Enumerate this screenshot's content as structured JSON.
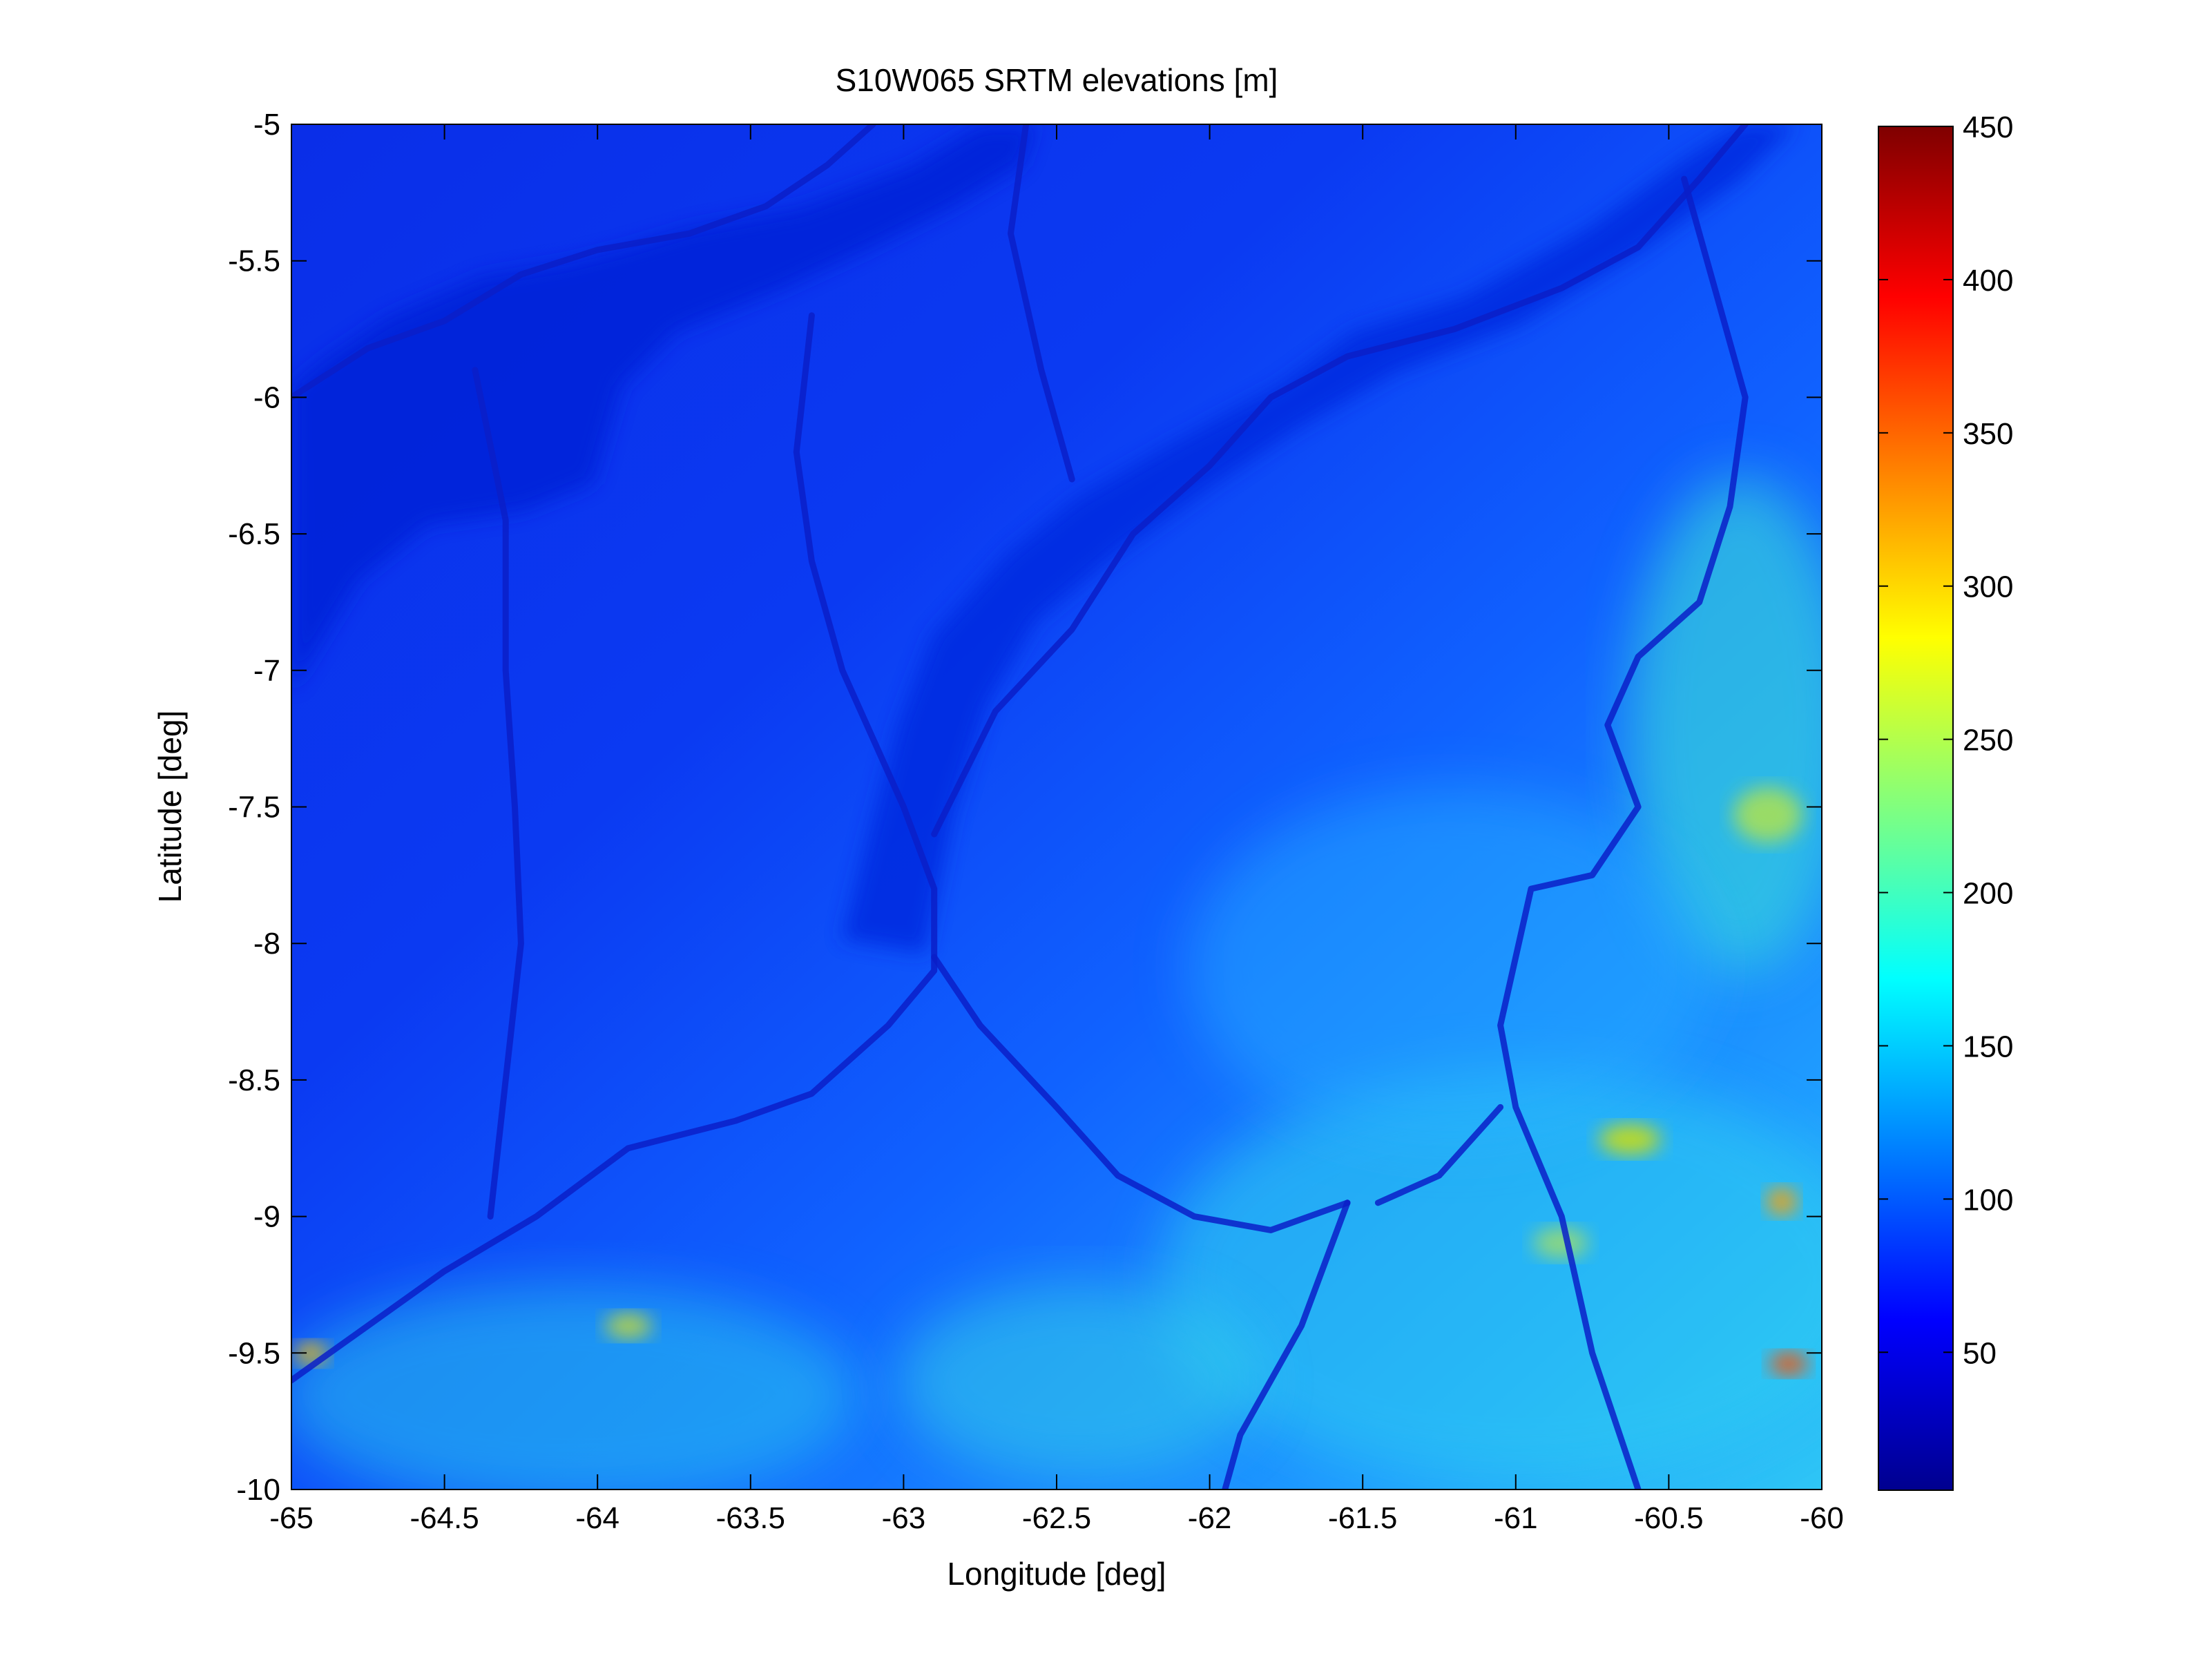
{
  "figure": {
    "title": "S10W065 SRTM elevations [m]",
    "colormap": "jet",
    "background": "#ffffff"
  },
  "map": {
    "xlabel": "Longitude [deg]",
    "ylabel": "Latitude [deg]",
    "xlim": [
      -65,
      -60
    ],
    "ylim": [
      -10,
      -5
    ],
    "xticks": [
      -65,
      -64.5,
      -64,
      -63.5,
      -63,
      -62.5,
      -62,
      -61.5,
      -61,
      -60.5,
      -60
    ],
    "yticks": [
      -5,
      -5.5,
      -6,
      -6.5,
      -7,
      -7.5,
      -8,
      -8.5,
      -9,
      -9.5,
      -10
    ],
    "rivers": [
      {
        "name": "",
        "points": [
          [
            -65,
            -6.0
          ],
          [
            -64.75,
            -5.82
          ],
          [
            -64.5,
            -5.72
          ],
          [
            -64.25,
            -5.55
          ],
          [
            -64.0,
            -5.46
          ],
          [
            -63.7,
            -5.4
          ],
          [
            -63.45,
            -5.3
          ],
          [
            -63.25,
            -5.15
          ],
          [
            -63.1,
            -5.0
          ]
        ]
      },
      {
        "name": "",
        "points": [
          [
            -64.4,
            -5.9
          ],
          [
            -64.3,
            -6.45
          ],
          [
            -64.3,
            -7.0
          ],
          [
            -64.27,
            -7.5
          ],
          [
            -64.25,
            -8.0
          ],
          [
            -64.3,
            -8.5
          ],
          [
            -64.35,
            -9.0
          ]
        ]
      },
      {
        "name": "",
        "points": [
          [
            -63.3,
            -5.7
          ],
          [
            -63.35,
            -6.2
          ],
          [
            -63.3,
            -6.6
          ],
          [
            -63.2,
            -7.0
          ],
          [
            -63.0,
            -7.5
          ],
          [
            -62.9,
            -7.8
          ],
          [
            -62.9,
            -8.1
          ],
          [
            -63.05,
            -8.3
          ],
          [
            -63.3,
            -8.55
          ],
          [
            -63.55,
            -8.65
          ],
          [
            -63.9,
            -8.75
          ],
          [
            -64.2,
            -9.0
          ],
          [
            -64.5,
            -9.2
          ],
          [
            -64.75,
            -9.4
          ],
          [
            -65,
            -9.6
          ]
        ]
      },
      {
        "name": "",
        "points": [
          [
            -62.9,
            -8.05
          ],
          [
            -62.75,
            -8.3
          ],
          [
            -62.5,
            -8.6
          ],
          [
            -62.3,
            -8.85
          ],
          [
            -62.05,
            -9.0
          ],
          [
            -61.8,
            -9.05
          ],
          [
            -61.55,
            -8.95
          ]
        ]
      },
      {
        "name": "",
        "points": [
          [
            -62.9,
            -7.6
          ],
          [
            -62.7,
            -7.15
          ],
          [
            -62.45,
            -6.85
          ],
          [
            -62.25,
            -6.5
          ],
          [
            -62.0,
            -6.25
          ],
          [
            -61.8,
            -6.0
          ],
          [
            -61.55,
            -5.85
          ],
          [
            -61.2,
            -5.75
          ],
          [
            -60.85,
            -5.6
          ],
          [
            -60.6,
            -5.45
          ],
          [
            -60.4,
            -5.2
          ],
          [
            -60.25,
            -5.0
          ]
        ]
      },
      {
        "name": "",
        "points": [
          [
            -62.6,
            -5.0
          ],
          [
            -62.65,
            -5.4
          ],
          [
            -62.55,
            -5.9
          ],
          [
            -62.45,
            -6.3
          ]
        ]
      },
      {
        "name": "",
        "points": [
          [
            -60.45,
            -5.2
          ],
          [
            -60.35,
            -5.6
          ],
          [
            -60.25,
            -6.0
          ],
          [
            -60.3,
            -6.4
          ],
          [
            -60.4,
            -6.75
          ],
          [
            -60.6,
            -6.95
          ],
          [
            -60.7,
            -7.2
          ],
          [
            -60.6,
            -7.5
          ],
          [
            -60.75,
            -7.75
          ],
          [
            -60.95,
            -7.8
          ],
          [
            -61.05,
            -8.3
          ],
          [
            -61.0,
            -8.6
          ],
          [
            -60.85,
            -9.0
          ],
          [
            -60.75,
            -9.5
          ],
          [
            -60.6,
            -10.0
          ]
        ]
      },
      {
        "name": "",
        "points": [
          [
            -61.55,
            -8.95
          ],
          [
            -61.7,
            -9.4
          ],
          [
            -61.9,
            -9.8
          ],
          [
            -61.95,
            -10.0
          ]
        ]
      },
      {
        "name": "",
        "points": [
          [
            -61.05,
            -8.6
          ],
          [
            -61.25,
            -8.85
          ],
          [
            -61.45,
            -8.95
          ]
        ]
      }
    ]
  },
  "colorbar": {
    "ticks": [
      50,
      100,
      150,
      200,
      250,
      300,
      350,
      400,
      450
    ],
    "min": 5,
    "max": 450,
    "colors": [
      "#00008f",
      "#0000ff",
      "#007fff",
      "#00ffff",
      "#7fff7f",
      "#ffff00",
      "#ff7f00",
      "#ff0000",
      "#7f0000"
    ]
  }
}
